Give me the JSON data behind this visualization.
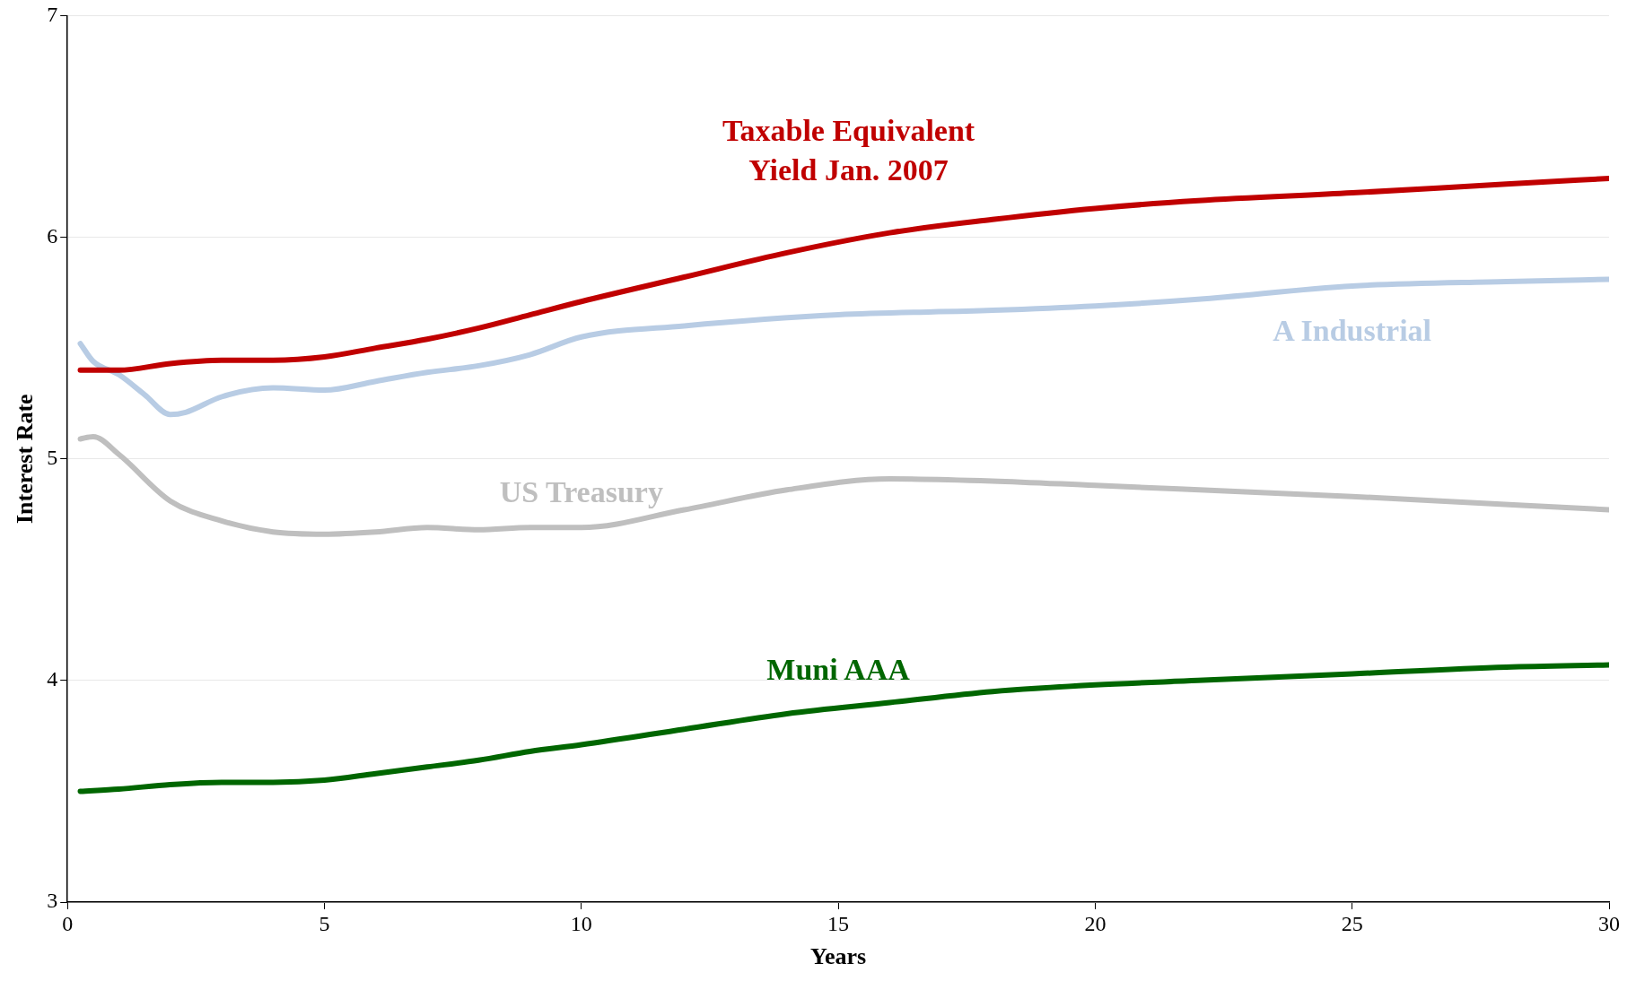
{
  "chart_data": {
    "type": "line",
    "xlabel": "Years",
    "ylabel": "Interest Rate",
    "xlim": [
      0,
      30
    ],
    "xticks": [
      0,
      5,
      10,
      15,
      20,
      25,
      30
    ],
    "ylim": [
      3,
      7
    ],
    "yticks": [
      3,
      4,
      5,
      6,
      7
    ],
    "grid": "y",
    "legend": false,
    "marker": "none",
    "line_style": "solid",
    "series": [
      {
        "name": "Taxable Equivalent Yield Jan. 2007",
        "color": "#c00000",
        "x": [
          0.25,
          1,
          2,
          3,
          4,
          5,
          6,
          7,
          8,
          9,
          10,
          12,
          14,
          16,
          18,
          20,
          22,
          25,
          28,
          30
        ],
        "values": [
          5.4,
          5.4,
          5.43,
          5.445,
          5.445,
          5.46,
          5.5,
          5.54,
          5.59,
          5.65,
          5.71,
          5.82,
          5.93,
          6.02,
          6.08,
          6.13,
          6.165,
          6.2,
          6.24,
          6.265
        ]
      },
      {
        "name": "A Industrial",
        "color": "#b8cce4",
        "x": [
          0.25,
          0.5,
          1,
          1.5,
          2,
          2.3,
          3,
          4,
          5,
          6,
          7,
          8,
          9,
          10,
          12,
          15,
          18,
          20,
          22,
          25,
          28,
          30
        ],
        "values": [
          5.52,
          5.44,
          5.38,
          5.29,
          5.2,
          5.21,
          5.28,
          5.32,
          5.31,
          5.35,
          5.39,
          5.42,
          5.47,
          5.55,
          5.6,
          5.65,
          5.67,
          5.69,
          5.72,
          5.78,
          5.8,
          5.81
        ]
      },
      {
        "name": "US Treasury",
        "color": "#bfbfbf",
        "x": [
          0.25,
          0.5,
          1,
          2,
          3,
          4,
          5,
          6,
          7,
          8,
          9,
          10,
          12,
          14,
          16,
          18,
          20,
          25,
          30
        ],
        "values": [
          5.09,
          5.1,
          5.02,
          4.81,
          4.72,
          4.67,
          4.66,
          4.67,
          4.69,
          4.68,
          4.69,
          4.69,
          4.77,
          4.86,
          4.91,
          4.9,
          4.88,
          4.83,
          4.77
        ]
      },
      {
        "name": "Muni AAA",
        "color": "#006600",
        "x": [
          0.25,
          1,
          2,
          3,
          4,
          5,
          6,
          7,
          8,
          9,
          10,
          12,
          14,
          16,
          18,
          20,
          22,
          25,
          28,
          30
        ],
        "values": [
          3.5,
          3.51,
          3.53,
          3.54,
          3.54,
          3.55,
          3.58,
          3.61,
          3.64,
          3.68,
          3.71,
          3.78,
          3.85,
          3.9,
          3.95,
          3.98,
          4.0,
          4.03,
          4.06,
          4.07
        ]
      }
    ]
  }
}
